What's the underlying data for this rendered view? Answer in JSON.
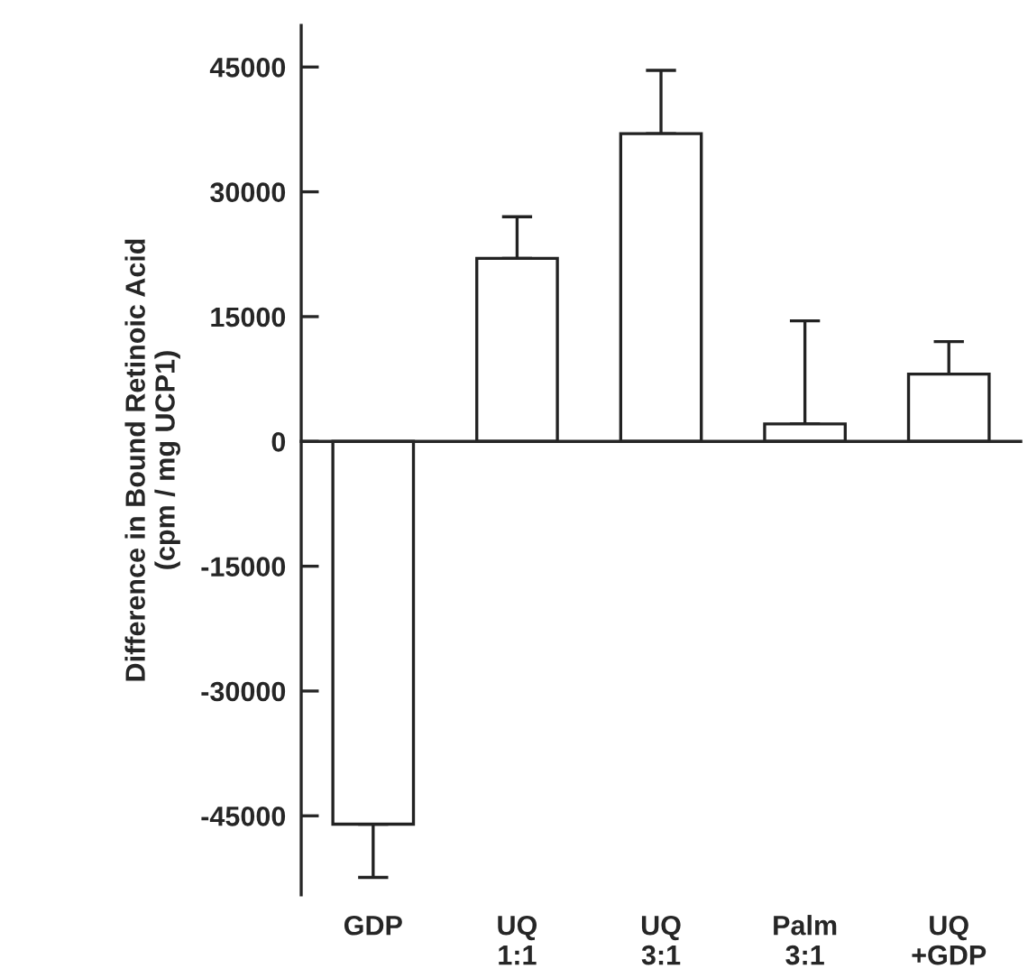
{
  "chart_data": {
    "type": "bar",
    "ylabel": "Difference in Bound Retinoic Acid\n(cpm / mg UCP1)",
    "categories": [
      "GDP",
      "UQ\n1:1",
      "UQ\n3:1",
      "Palm\n3:1",
      "UQ\n+GDP"
    ],
    "values": [
      -46000,
      22000,
      37000,
      2100,
      8100
    ],
    "errors": [
      [
        -52400,
        -46000
      ],
      [
        22000,
        27000
      ],
      [
        37000,
        44600
      ],
      [
        2100,
        14500
      ],
      [
        8100,
        12000
      ]
    ],
    "color": "#ffffff",
    "ylim": [
      -54500,
      50000
    ],
    "yticks": [
      -45000,
      -30000,
      -15000,
      0,
      15000,
      30000,
      45000
    ]
  }
}
